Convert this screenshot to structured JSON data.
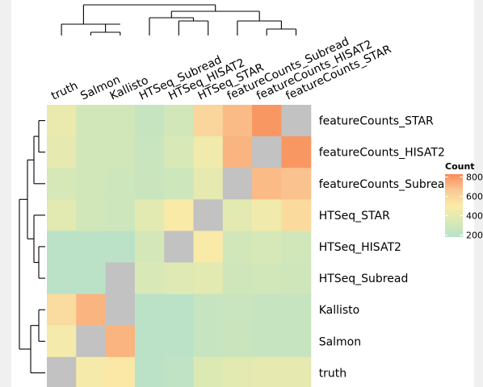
{
  "chart_data": {
    "type": "heatmap",
    "title": "",
    "xlabel": "",
    "ylabel": "",
    "columns": [
      "truth",
      "Salmon",
      "Kallisto",
      "HTSeq_Subread",
      "HTSeq_HISAT2",
      "HTSeq_STAR",
      "featureCounts_Subread",
      "featureCounts_HISAT2",
      "featureCounts_STAR"
    ],
    "rows": [
      "featureCounts_STAR",
      "featureCounts_HISAT2",
      "featureCounts_Subread",
      "HTSeq_STAR",
      "HTSeq_HISAT2",
      "HTSeq_Subread",
      "Kallisto",
      "Salmon",
      "truth"
    ],
    "values": [
      [
        420,
        300,
        300,
        250,
        300,
        600,
        700,
        800,
        null
      ],
      [
        400,
        300,
        300,
        260,
        330,
        450,
        720,
        null,
        800
      ],
      [
        320,
        300,
        280,
        270,
        280,
        400,
        null,
        700,
        680
      ],
      [
        380,
        300,
        280,
        380,
        500,
        null,
        380,
        450,
        580
      ],
      [
        200,
        200,
        200,
        310,
        null,
        500,
        300,
        320,
        300
      ],
      [
        200,
        200,
        null,
        330,
        360,
        380,
        290,
        300,
        290
      ],
      [
        570,
        720,
        null,
        200,
        200,
        250,
        260,
        250,
        250
      ],
      [
        470,
        null,
        720,
        200,
        200,
        250,
        270,
        250,
        250
      ],
      [
        null,
        480,
        520,
        200,
        220,
        350,
        380,
        400,
        400
      ]
    ],
    "diagonal_color": "#c2c2c2",
    "legend": {
      "title": "Count",
      "ticks": [
        800,
        600,
        400,
        200
      ],
      "range": [
        180,
        830
      ],
      "placement": "right",
      "colors": [
        "#b6e1c9",
        "#dbe9b4",
        "#fbeaa8",
        "#fac793",
        "#f98c58"
      ]
    },
    "grid": false
  }
}
